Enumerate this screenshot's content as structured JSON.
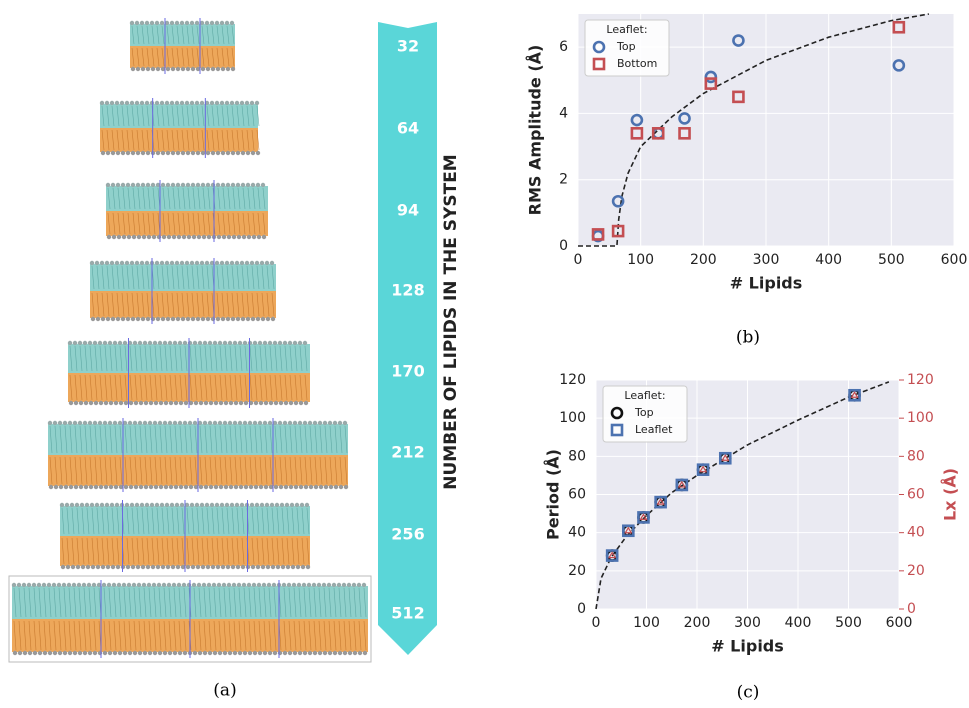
{
  "panel_a": {
    "counts": [
      32,
      64,
      94,
      128,
      170,
      212,
      256,
      512
    ],
    "axis_label": "NUMBER OF LIPIDS IN THE SYSTEM",
    "caption": "(a)"
  },
  "chart_data": [
    {
      "type": "scatter",
      "caption": "(b)",
      "xlabel": "# Lipids",
      "ylabel": "RMS Amplitude (Å)",
      "legend_title": "Leaflet:",
      "legend": "upper left",
      "grid": true,
      "x": [
        32,
        64,
        94,
        128,
        170,
        212,
        256,
        512
      ],
      "series": [
        {
          "name": "Top",
          "color": "#4c72b0",
          "marker": "circle",
          "values": [
            0.3,
            1.35,
            3.8,
            3.4,
            3.85,
            5.1,
            6.2,
            5.45
          ]
        },
        {
          "name": "Bottom",
          "color": "#c44e52",
          "marker": "square",
          "values": [
            0.35,
            0.45,
            3.4,
            3.4,
            3.4,
            4.9,
            4.5,
            6.6
          ]
        }
      ],
      "fit": {
        "color": "#222222",
        "x": [
          0,
          62,
          65,
          70,
          80,
          100,
          150,
          200,
          300,
          400,
          500,
          560
        ],
        "values": [
          0,
          0,
          0.8,
          1.5,
          2.2,
          3.0,
          3.9,
          4.6,
          5.6,
          6.3,
          6.8,
          7.0
        ]
      },
      "xlim": [
        0,
        600
      ],
      "xticks": [
        0,
        100,
        200,
        300,
        400,
        500,
        600
      ],
      "ylim": [
        0,
        7
      ],
      "yticks": [
        0,
        2,
        4,
        6
      ]
    },
    {
      "type": "scatter",
      "caption": "(c)",
      "xlabel": "# Lipids",
      "ylabel": "Period (Å)",
      "y2label": "Lx (Å)",
      "y2color": "#c44e52",
      "legend_title": "Leaflet:",
      "legend": "upper left",
      "grid": true,
      "x": [
        32,
        64,
        94,
        128,
        170,
        212,
        256,
        512
      ],
      "series": [
        {
          "name": "Top",
          "color": "#111111",
          "marker": "circle",
          "values": [
            28,
            41,
            48,
            56,
            65,
            73,
            79,
            112
          ]
        },
        {
          "name": "Leaflet",
          "color": "#4c72b0",
          "marker": "square",
          "values": [
            28,
            41,
            48,
            56,
            65,
            73,
            79,
            112
          ]
        },
        {
          "color": "#c44e52",
          "marker": "triangle",
          "axis": "y2",
          "values": [
            28,
            41,
            48,
            56,
            65,
            73,
            79,
            112
          ]
        }
      ],
      "fit": {
        "color": "#222222",
        "x": [
          0,
          10,
          30,
          60,
          100,
          150,
          200,
          300,
          400,
          500,
          580
        ],
        "values": [
          0,
          16,
          27,
          38,
          49,
          61,
          70,
          86,
          99,
          111,
          119
        ]
      },
      "xlim": [
        0,
        600
      ],
      "xticks": [
        0,
        100,
        200,
        300,
        400,
        500,
        600
      ],
      "ylim": [
        0,
        120
      ],
      "yticks": [
        0,
        20,
        40,
        60,
        80,
        100,
        120
      ],
      "y2lim": [
        0,
        120
      ],
      "y2ticks": [
        0,
        20,
        40,
        60,
        80,
        100,
        120
      ]
    }
  ]
}
